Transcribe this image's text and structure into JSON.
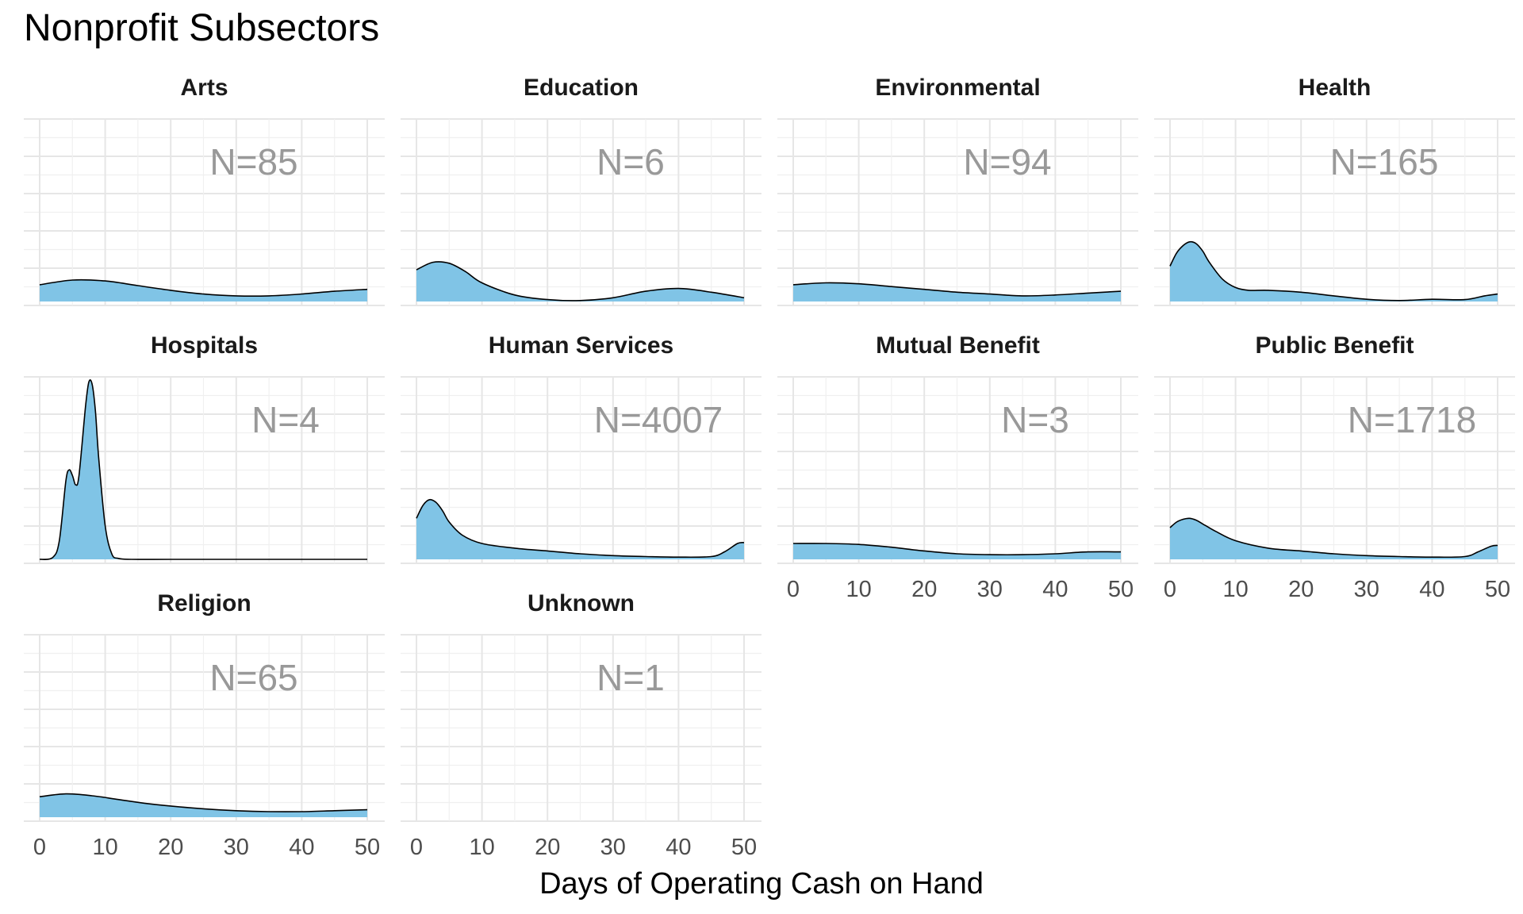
{
  "chart_data": {
    "type": "area",
    "title": "Nonprofit Subsectors",
    "xlabel": "Days of Operating Cash on Hand",
    "ylabel": "",
    "xlim": [
      0,
      50
    ],
    "x_ticks": [
      0,
      10,
      20,
      30,
      40,
      50
    ],
    "grid": true,
    "fill_color": "#80c4e6",
    "line_color": "#000000",
    "facets": [
      {
        "name": "Arts",
        "n_label": "N=85",
        "x": [
          0,
          5,
          10,
          15,
          20,
          25,
          30,
          35,
          40,
          45,
          50
        ],
        "density": [
          0.09,
          0.115,
          0.11,
          0.085,
          0.06,
          0.04,
          0.03,
          0.03,
          0.04,
          0.055,
          0.065
        ]
      },
      {
        "name": "Education",
        "n_label": "N=6",
        "x": [
          0,
          2.5,
          5,
          7.5,
          10,
          15,
          20,
          25,
          30,
          35,
          40,
          45,
          50
        ],
        "density": [
          0.17,
          0.21,
          0.205,
          0.16,
          0.1,
          0.035,
          0.01,
          0.005,
          0.02,
          0.055,
          0.07,
          0.05,
          0.02
        ]
      },
      {
        "name": "Environmental",
        "n_label": "N=94",
        "x": [
          0,
          5,
          10,
          15,
          20,
          25,
          30,
          35,
          40,
          45,
          50
        ],
        "density": [
          0.09,
          0.1,
          0.095,
          0.08,
          0.065,
          0.05,
          0.04,
          0.03,
          0.035,
          0.045,
          0.055
        ]
      },
      {
        "name": "Health",
        "n_label": "N=165",
        "x": [
          0,
          1,
          2,
          3,
          4,
          5,
          6,
          8,
          10,
          12,
          15,
          20,
          25,
          30,
          35,
          40,
          45,
          48,
          50
        ],
        "density": [
          0.19,
          0.26,
          0.3,
          0.32,
          0.31,
          0.27,
          0.21,
          0.12,
          0.075,
          0.06,
          0.06,
          0.05,
          0.03,
          0.012,
          0.005,
          0.012,
          0.01,
          0.03,
          0.04
        ]
      },
      {
        "name": "Hospitals",
        "n_label": "N=4",
        "x": [
          0,
          2,
          3,
          4,
          4.5,
          5,
          5.5,
          6,
          7,
          7.5,
          8,
          8.5,
          9,
          10,
          11,
          12,
          14,
          20,
          30,
          40,
          50
        ],
        "density": [
          0,
          0.01,
          0.1,
          0.42,
          0.48,
          0.45,
          0.4,
          0.45,
          0.82,
          0.95,
          0.94,
          0.8,
          0.55,
          0.18,
          0.03,
          0.005,
          0,
          0,
          0,
          0,
          0
        ]
      },
      {
        "name": "Human Services",
        "n_label": "N=4007",
        "x": [
          0,
          1,
          2,
          3,
          4,
          5,
          7,
          10,
          15,
          20,
          25,
          30,
          35,
          40,
          45,
          47,
          49,
          50
        ],
        "density": [
          0.22,
          0.29,
          0.32,
          0.305,
          0.26,
          0.2,
          0.13,
          0.085,
          0.06,
          0.045,
          0.03,
          0.02,
          0.015,
          0.012,
          0.015,
          0.04,
          0.085,
          0.09
        ]
      },
      {
        "name": "Mutual Benefit",
        "n_label": "N=3",
        "x": [
          0,
          5,
          10,
          15,
          20,
          25,
          30,
          35,
          40,
          45,
          50
        ],
        "density": [
          0.085,
          0.085,
          0.08,
          0.065,
          0.045,
          0.03,
          0.025,
          0.025,
          0.03,
          0.04,
          0.04
        ]
      },
      {
        "name": "Public Benefit",
        "n_label": "N=1718",
        "x": [
          0,
          1,
          2,
          3,
          4,
          5,
          7,
          10,
          15,
          20,
          25,
          30,
          35,
          40,
          45,
          47,
          49,
          50
        ],
        "density": [
          0.17,
          0.2,
          0.215,
          0.22,
          0.21,
          0.19,
          0.15,
          0.1,
          0.06,
          0.045,
          0.03,
          0.02,
          0.015,
          0.012,
          0.015,
          0.04,
          0.07,
          0.075
        ]
      },
      {
        "name": "Religion",
        "n_label": "N=65",
        "x": [
          0,
          4,
          8,
          12,
          16,
          20,
          25,
          30,
          35,
          40,
          45,
          50
        ],
        "density": [
          0.11,
          0.125,
          0.115,
          0.095,
          0.075,
          0.06,
          0.045,
          0.035,
          0.03,
          0.03,
          0.035,
          0.04
        ]
      },
      {
        "name": "Unknown",
        "n_label": "N=1",
        "x": [],
        "density": []
      }
    ]
  }
}
